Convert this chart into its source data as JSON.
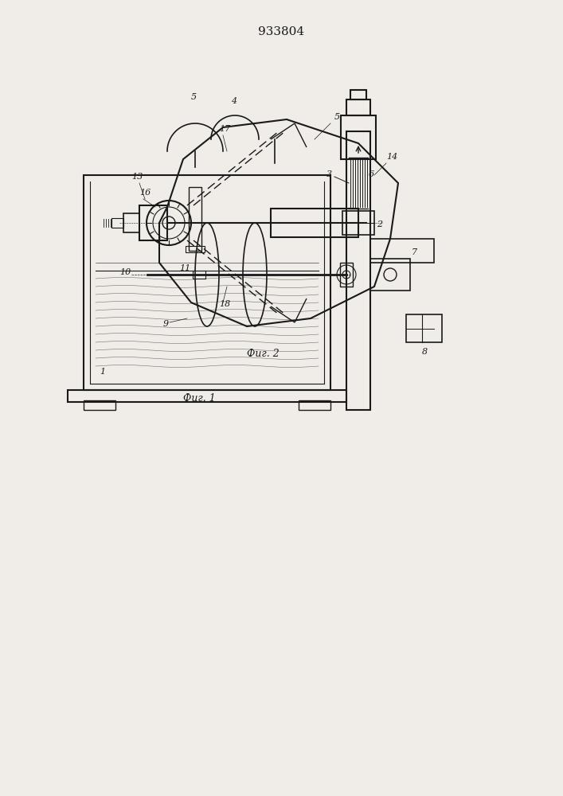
{
  "title": "933804",
  "title_fontsize": 11,
  "fig1_caption": "Фиг. 1",
  "fig2_caption": "Фиг. 2",
  "bg_color": "#f0ede8",
  "line_color": "#1a1a1a",
  "line_width": 1.0
}
